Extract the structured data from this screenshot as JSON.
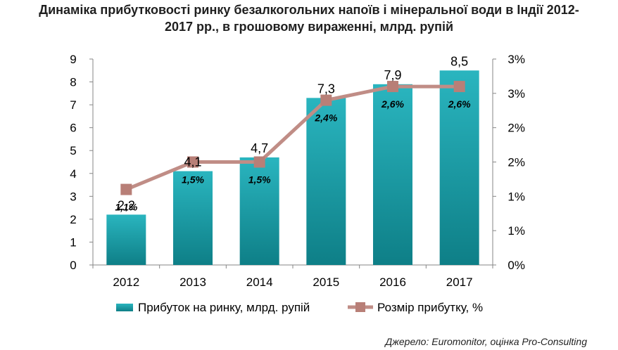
{
  "title_line1": "Динаміка прибутковості ринку безалкогольних напоїв і мінеральної води в Індії 2012-",
  "title_line2": "2017 рр., в грошовому вираженні, млрд. рупій",
  "source": "Джерело: Euromonitor, оцінка Pro-Consulting",
  "colors": {
    "bar_top": "#2ab5bf",
    "bar_bottom": "#0e7f87",
    "line": "#c08d86",
    "marker": "#b87f77"
  },
  "chart_data": {
    "type": "bar",
    "categories": [
      "2012",
      "2013",
      "2014",
      "2015",
      "2016",
      "2017"
    ],
    "series": [
      {
        "name": "Прибуток на ринку, млрд. рупій",
        "type": "bar",
        "axis": "left",
        "values": [
          2.2,
          4.1,
          4.7,
          7.3,
          7.9,
          8.5
        ],
        "labels": [
          "2,2",
          "4,1",
          "4,7",
          "7,3",
          "7,9",
          "8,5"
        ]
      },
      {
        "name": "Розмір прибутку, %",
        "type": "line",
        "axis": "right",
        "values": [
          1.1,
          1.5,
          1.5,
          2.4,
          2.6,
          2.6
        ],
        "labels": [
          "1,1%",
          "1,5%",
          "1,5%",
          "2,4%",
          "2,6%",
          "2,6%"
        ]
      }
    ],
    "y_left": {
      "min": 0,
      "max": 9,
      "ticks": [
        "0",
        "1",
        "2",
        "3",
        "4",
        "5",
        "6",
        "7",
        "8",
        "9"
      ]
    },
    "y_right": {
      "min": 0,
      "max": 3,
      "ticks": [
        "0%",
        "1%",
        "1%",
        "2%",
        "2%",
        "3%",
        "3%"
      ]
    },
    "legend_position": "bottom",
    "grid": false
  }
}
